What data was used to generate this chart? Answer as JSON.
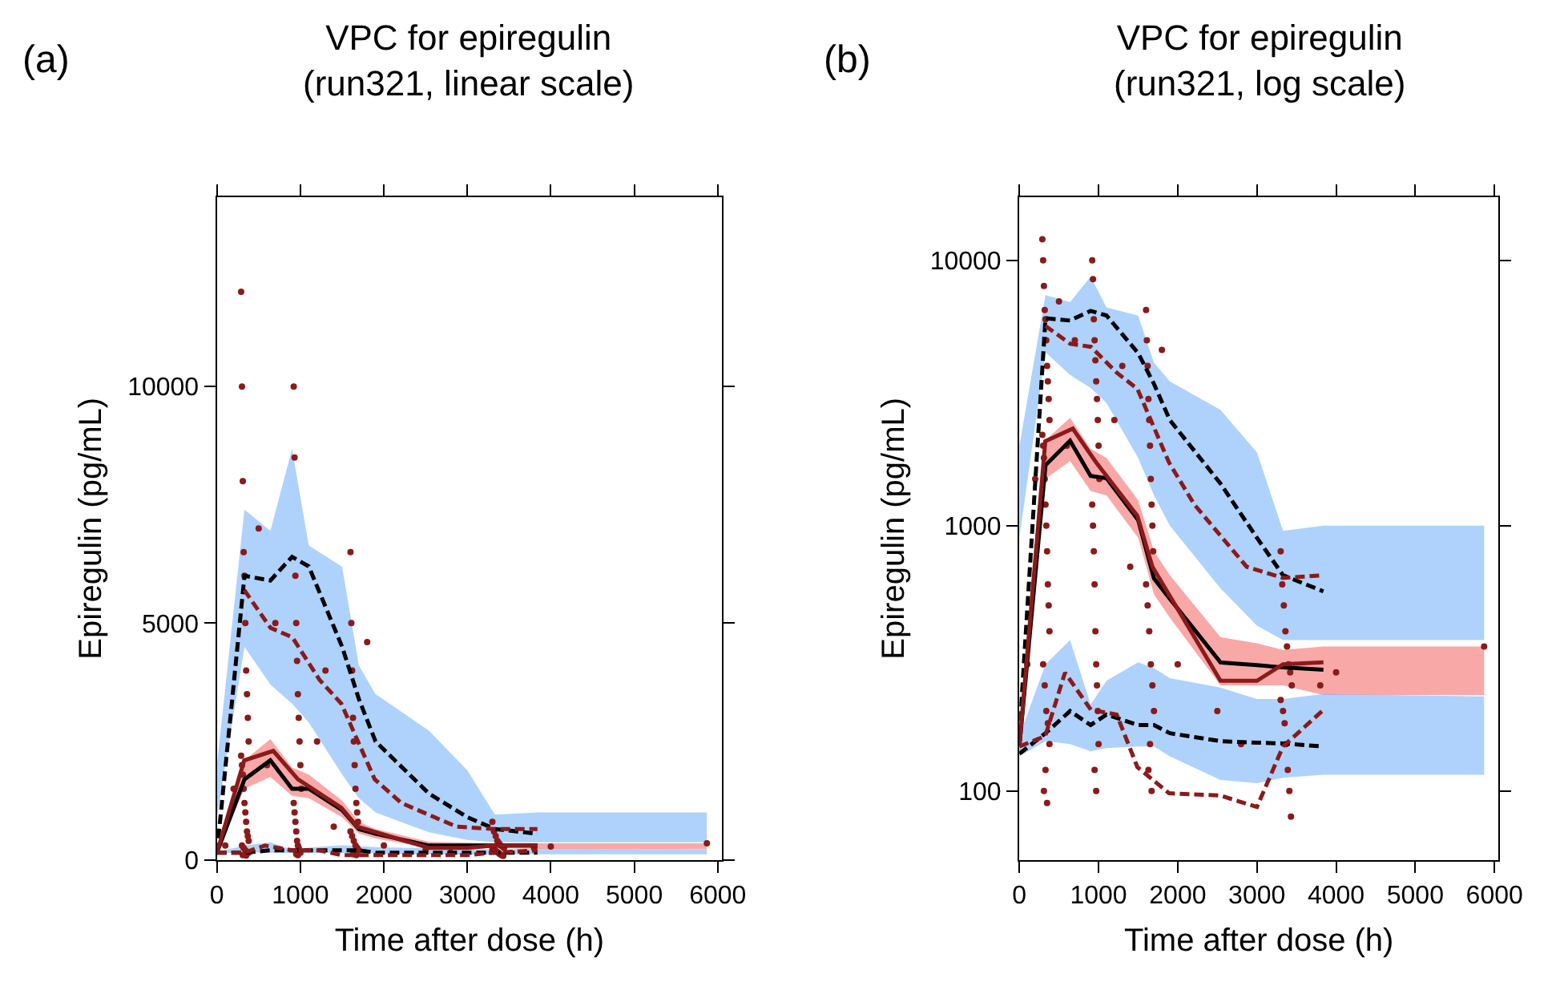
{
  "chart_data": [
    {
      "type": "line",
      "title": "VPC for epiregulin\n(run321, linear scale)",
      "xlabel": "Time after dose (h)",
      "ylabel": "Epiregulin (pg/mL)",
      "annotations": [
        "(a)"
      ],
      "xlim": [
        0,
        6050
      ],
      "xticks": [
        0,
        1000,
        2000,
        3000,
        4000,
        5000,
        6000
      ],
      "ylim": [
        0,
        14000
      ],
      "yticks": [
        0,
        5000,
        10000
      ],
      "series": [
        {
          "color": "#000000",
          "line_style": "dashed",
          "marker": "none",
          "x": [
            0,
            330,
            640,
            900,
            1100,
            1500,
            1700,
            1900,
            2540,
            3000,
            3330,
            3840,
            5870
          ],
          "values": [
            150,
            6000,
            5900,
            6400,
            6200,
            4500,
            3400,
            2500,
            1400,
            900,
            650,
            550,
            null
          ],
          "lower": [
            900,
            4500,
            3700,
            3300,
            2900,
            1800,
            1300,
            1000,
            580,
            420,
            370,
            370,
            370
          ],
          "upper": [
            2000,
            7400,
            6950,
            8680,
            6640,
            6190,
            4110,
            3500,
            2730,
            1890,
            955,
            1000,
            1000
          ]
        },
        {
          "color": "#000000",
          "line_style": "solid",
          "marker": "none",
          "x": [
            0,
            330,
            640,
            900,
            1100,
            1500,
            1700,
            1900,
            2540,
            3000,
            3330,
            3840,
            5870
          ],
          "values": [
            150,
            1700,
            2100,
            1500,
            1500,
            1050,
            650,
            550,
            300,
            300,
            300,
            300,
            null
          ],
          "lower": [
            135,
            1500,
            1750,
            1350,
            1300,
            900,
            550,
            450,
            250,
            250,
            250,
            230,
            230
          ],
          "upper": [
            160,
            2100,
            2550,
            1950,
            1800,
            1250,
            800,
            650,
            380,
            360,
            340,
            350,
            350
          ]
        },
        {
          "color": "#000000",
          "line_style": "dashed",
          "marker": "none",
          "x": [
            0,
            330,
            640,
            900,
            1100,
            1500,
            1700,
            1900,
            2540,
            3000,
            3330,
            3840,
            5870
          ],
          "values": [
            150,
            150,
            200,
            200,
            200,
            200,
            200,
            150,
            150,
            150,
            150,
            150,
            null
          ],
          "lower": [
            135,
            154,
            150,
            141,
            145,
            147,
            147,
            135,
            110,
            107,
            112,
            115,
            115
          ],
          "upper": [
            161,
            300,
            370,
            212,
            260,
            305,
            290,
            266,
            245,
            222,
            222,
            232,
            227
          ]
        },
        {
          "type": "scatter",
          "color": "#8b1a1a",
          "marker": "circle",
          "x": [
            290,
            300,
            310,
            320,
            330,
            340,
            350,
            360,
            370,
            380,
            290,
            300,
            310,
            320,
            330,
            340,
            350,
            360,
            370,
            380,
            300,
            320,
            340,
            380,
            310,
            350,
            920,
            930,
            940,
            950,
            960,
            970,
            980,
            990,
            1000,
            1010,
            920,
            930,
            940,
            950,
            960,
            970,
            980,
            990,
            1000,
            950,
            970,
            1600,
            1610,
            1620,
            1630,
            1640,
            1650,
            1660,
            1670,
            1680,
            1690,
            1600,
            1620,
            1640,
            1660,
            1680,
            1700,
            1630,
            1670,
            3300,
            3320,
            3340,
            3360,
            3380,
            3400,
            3420,
            3440,
            3300,
            3330,
            3350,
            3370,
            3390,
            3410,
            3430,
            100,
            200,
            500,
            600,
            700,
            1200,
            1300,
            1400,
            1800,
            2000,
            2500,
            2800,
            3800,
            4000,
            5870
          ],
          "values": [
            12000,
            10000,
            8000,
            6500,
            6000,
            5000,
            4000,
            3500,
            3000,
            2500,
            2200,
            2000,
            1800,
            1500,
            1200,
            1000,
            800,
            600,
            500,
            400,
            300,
            250,
            200,
            150,
            100,
            90,
            10000,
            8500,
            6000,
            5000,
            4200,
            3500,
            3000,
            2500,
            2000,
            1500,
            1200,
            1000,
            800,
            600,
            400,
            300,
            250,
            200,
            150,
            120,
            100,
            6500,
            5000,
            4000,
            3000,
            2500,
            2000,
            1500,
            1200,
            1000,
            800,
            600,
            500,
            400,
            300,
            250,
            200,
            120,
            100,
            800,
            600,
            500,
            400,
            350,
            300,
            280,
            250,
            220,
            200,
            180,
            150,
            120,
            100,
            80,
            300,
            1500,
            7000,
            2000,
            5000,
            2500,
            4000,
            700,
            4600,
            300,
            200,
            150,
            250,
            280,
            350
          ]
        },
        {
          "color": "#8b1a1a",
          "line_style": "dashed",
          "marker": "none",
          "x": [
            327,
            642,
            904,
            1230,
            1490,
            1890,
            2210,
            2870,
            3330,
            3840
          ],
          "values": [
            5700,
            4900,
            4700,
            3800,
            3300,
            1700,
            1200,
            700,
            650,
            650
          ]
        },
        {
          "color": "#8b1a1a",
          "line_style": "solid",
          "marker": "none",
          "x": [
            0,
            327,
            675,
            970,
            1490,
            1680,
            2540,
            3000,
            3330,
            3840
          ],
          "values": [
            150,
            2100,
            2300,
            1700,
            1100,
            700,
            250,
            250,
            300,
            300
          ]
        },
        {
          "color": "#8b1a1a",
          "line_style": "dashed",
          "marker": "none",
          "x": [
            0,
            327,
            576,
            904,
            1230,
            1490,
            1890,
            2540,
            3000,
            3330,
            3840
          ],
          "values": [
            150,
            150,
            300,
            200,
            200,
            100,
            100,
            100,
            100,
            150,
            200
          ]
        }
      ]
    },
    {
      "type": "line",
      "title": "VPC for epiregulin\n(run321, log scale)",
      "xlabel": "Time after dose (h)",
      "ylabel": "Epiregulin (pg/mL)",
      "annotations": [
        "(b)"
      ],
      "log": true,
      "xlim": [
        0,
        6050
      ],
      "xticks": [
        0,
        1000,
        2000,
        3000,
        4000,
        5000,
        6000
      ],
      "ylim": [
        55,
        17300
      ],
      "yticks": [
        100,
        1000,
        10000
      ],
      "series": [
        {
          "color": "#000000",
          "line_style": "dashed",
          "marker": "none",
          "x": [
            0,
            330,
            640,
            900,
            1100,
            1500,
            1700,
            1900,
            2540,
            3000,
            3330,
            3840,
            5870
          ],
          "values": [
            162,
            6050,
            5930,
            6450,
            6200,
            4470,
            3420,
            2500,
            1440,
            900,
            650,
            565,
            null
          ],
          "lower": [
            900,
            4500,
            3700,
            3300,
            2900,
            1800,
            1300,
            1000,
            580,
            420,
            370,
            370,
            370
          ],
          "upper": [
            2000,
            7400,
            6950,
            8680,
            6640,
            6190,
            4110,
            3500,
            2730,
            1890,
            955,
            1000,
            1000
          ]
        },
        {
          "color": "#000000",
          "line_style": "solid",
          "marker": "none",
          "x": [
            0,
            330,
            640,
            900,
            1100,
            1500,
            1700,
            1900,
            2540,
            3000,
            3330,
            3840,
            5870
          ],
          "values": [
            147,
            1690,
            2090,
            1540,
            1510,
            1050,
            632,
            530,
            305,
            298,
            292,
            286,
            null
          ],
          "lower": [
            135,
            1500,
            1750,
            1350,
            1300,
            900,
            550,
            450,
            250,
            250,
            250,
            230,
            230
          ],
          "upper": [
            160,
            2100,
            2550,
            1950,
            1800,
            1250,
            800,
            650,
            380,
            360,
            340,
            350,
            350
          ]
        },
        {
          "color": "#000000",
          "line_style": "dashed",
          "marker": "none",
          "x": [
            0,
            330,
            640,
            900,
            1100,
            1500,
            1700,
            1900,
            2540,
            3000,
            3330,
            3840,
            5870
          ],
          "values": [
            138,
            165,
            200,
            177,
            194,
            177,
            177,
            165,
            154,
            152,
            151,
            147,
            null
          ],
          "lower": [
            135,
            154,
            150,
            141,
            145,
            147,
            147,
            135,
            110,
            107,
            112,
            115,
            115
          ],
          "upper": [
            161,
            300,
            370,
            212,
            260,
            305,
            290,
            266,
            245,
            222,
            222,
            232,
            227
          ]
        },
        {
          "type": "scatter",
          "color": "#8b1a1a",
          "marker": "circle",
          "x": [
            290,
            300,
            310,
            320,
            330,
            340,
            350,
            360,
            370,
            380,
            290,
            300,
            310,
            320,
            330,
            340,
            350,
            360,
            370,
            380,
            300,
            320,
            340,
            360,
            380,
            330,
            310,
            350,
            920,
            930,
            940,
            950,
            960,
            970,
            980,
            990,
            1000,
            1010,
            920,
            930,
            940,
            950,
            960,
            970,
            980,
            990,
            1000,
            950,
            970,
            1600,
            1610,
            1620,
            1630,
            1640,
            1650,
            1660,
            1670,
            1680,
            1690,
            1600,
            1620,
            1640,
            1660,
            1680,
            1700,
            1650,
            1630,
            1670,
            3300,
            3320,
            3340,
            3360,
            3380,
            3400,
            3420,
            3440,
            3300,
            3330,
            3350,
            3370,
            3390,
            3410,
            3430,
            100,
            200,
            500,
            600,
            700,
            1200,
            1300,
            1400,
            1800,
            2000,
            2500,
            2800,
            3800,
            4000,
            5870
          ],
          "values": [
            12000,
            10000,
            8000,
            6500,
            6000,
            5000,
            4000,
            3500,
            3000,
            2500,
            2200,
            2000,
            1800,
            1500,
            1200,
            1000,
            800,
            600,
            500,
            400,
            300,
            250,
            200,
            180,
            150,
            120,
            100,
            90,
            10000,
            8500,
            6000,
            5000,
            4200,
            3500,
            3000,
            2500,
            2000,
            1500,
            1200,
            1000,
            800,
            600,
            400,
            300,
            250,
            200,
            150,
            120,
            100,
            6500,
            5000,
            4000,
            3000,
            2500,
            2000,
            1500,
            1200,
            1000,
            800,
            600,
            500,
            400,
            300,
            250,
            200,
            150,
            120,
            100,
            800,
            600,
            500,
            400,
            350,
            300,
            280,
            250,
            220,
            200,
            180,
            150,
            120,
            100,
            80,
            300,
            1500,
            7000,
            2000,
            5000,
            2500,
            4000,
            700,
            4600,
            300,
            200,
            150,
            250,
            280,
            350
          ]
        },
        {
          "color": "#8b1a1a",
          "line_style": "dashed",
          "marker": "none",
          "x": [
            327,
            642,
            904,
            1230,
            1490,
            1890,
            2210,
            2870,
            3330,
            3840
          ],
          "values": [
            5660,
            4850,
            4720,
            3770,
            3280,
            1730,
            1200,
            700,
            635,
            650
          ]
        },
        {
          "color": "#8b1a1a",
          "line_style": "solid",
          "marker": "none",
          "x": [
            0,
            327,
            675,
            970,
            1490,
            1680,
            2540,
            3000,
            3330,
            3840
          ],
          "values": [
            147,
            2080,
            2320,
            1730,
            1090,
            700,
            260,
            260,
            300,
            305
          ]
        },
        {
          "color": "#8b1a1a",
          "line_style": "dashed",
          "marker": "none",
          "x": [
            0,
            327,
            576,
            904,
            1230,
            1490,
            1890,
            2540,
            3000,
            3330,
            3840
          ],
          "values": [
            147,
            161,
            279,
            202,
            194,
            123,
            98,
            96,
            87,
            147,
            202
          ]
        }
      ]
    }
  ]
}
